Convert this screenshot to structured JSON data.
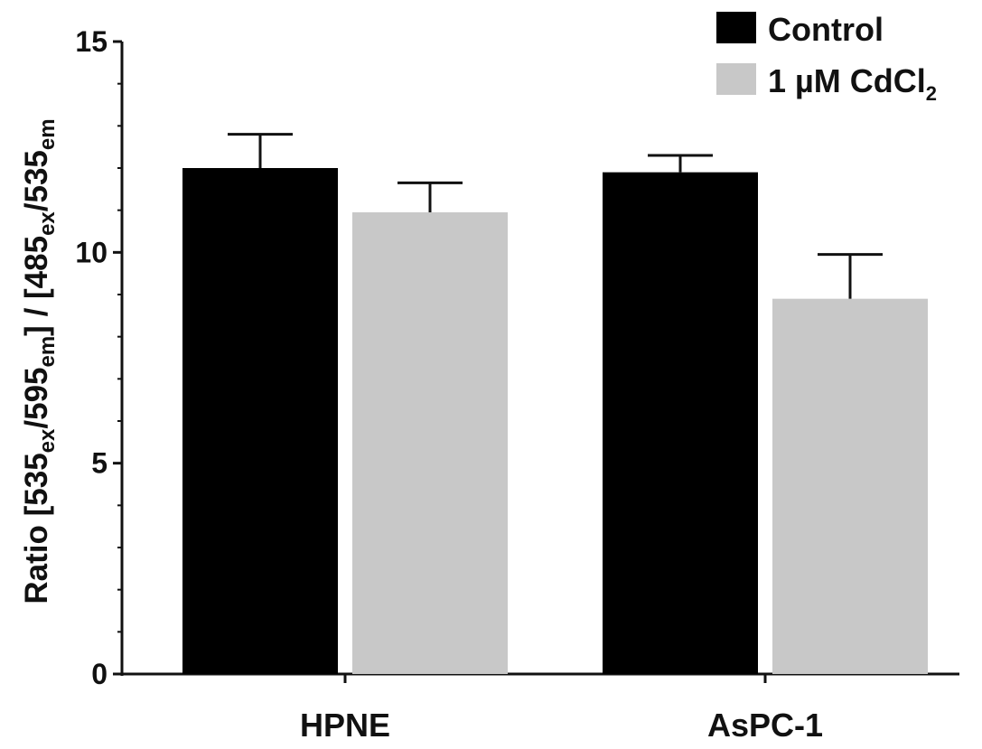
{
  "chart_data": {
    "type": "bar",
    "categories": [
      "HPNE",
      "AsPC-1"
    ],
    "series": [
      {
        "name": "Control",
        "values": [
          12.0,
          11.9
        ],
        "errors": [
          0.8,
          0.4
        ],
        "color": "#000000"
      },
      {
        "name": "1 µM CdCl2",
        "values": [
          10.95,
          8.9
        ],
        "errors": [
          0.7,
          1.05
        ],
        "color": "#c8c8c8"
      }
    ],
    "ylabel": "Ratio [535ex/595em] / [485ex/535em]",
    "ylim": [
      0,
      15
    ],
    "yticks": [
      0,
      5,
      10,
      15
    ],
    "grid": false,
    "legend_position": "top-right"
  },
  "legend": {
    "control_label": "Control",
    "cdcl2_label_main": "1 µM CdCl",
    "cdcl2_label_sub": "2"
  },
  "ylabel_parts": {
    "p1": "Ratio [535",
    "s1": "ex",
    "p2": "/595",
    "s2": "em",
    "p3": "] / [485",
    "s3": "ex",
    "p4": "/535",
    "s4": "em"
  }
}
